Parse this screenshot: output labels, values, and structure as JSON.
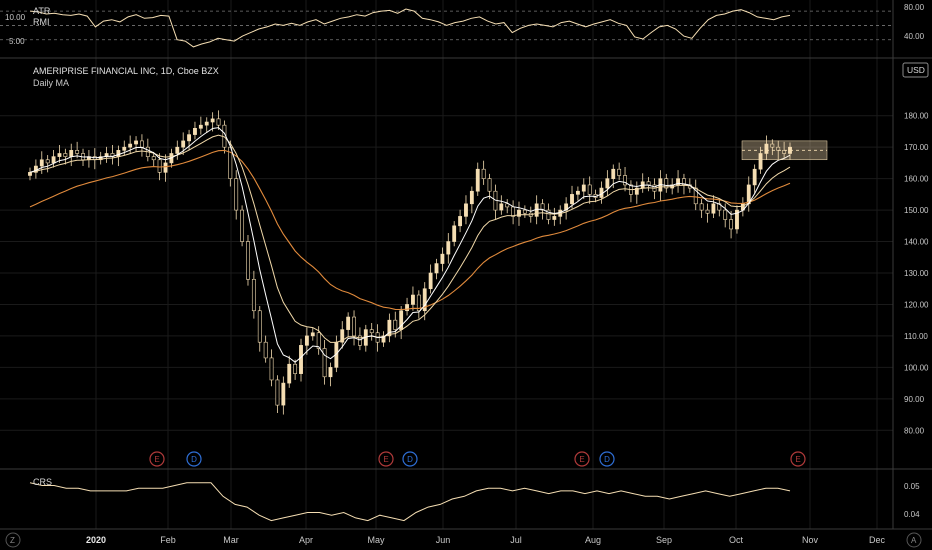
{
  "main_legend": {
    "title": "AMERIPRISE FINANCIAL INC, 1D, Cboe BZX",
    "subtitle": "Daily MA"
  },
  "top_legend": {
    "atr": "ATR",
    "rmi": "RMI"
  },
  "bottom_legend": {
    "crs": "CRS"
  },
  "currency_badge": "USD",
  "corner_buttons": {
    "left_bottom": "Z",
    "right_bottom": "A"
  },
  "colors": {
    "candle": "#f5deb3",
    "ma_fast": "#ffffff",
    "ma_mid": "#f0d8a8",
    "ma_slow": "#e08a3c",
    "indicator": "#f5deb3",
    "highlight": "#f5deb3",
    "earnings": "#b03a3a",
    "dividend": "#2f6fd6",
    "grid": "#1a1a1a"
  },
  "chart_data": [
    {
      "type": "line",
      "panel": "top",
      "series": [
        {
          "name": "RMI",
          "values": [
            80,
            79,
            76,
            77,
            75,
            74,
            76,
            73,
            58,
            66,
            68,
            65,
            72,
            75,
            70,
            71,
            74,
            73,
            40,
            38,
            30,
            34,
            37,
            42,
            40,
            38,
            45,
            50,
            55,
            58,
            62,
            60,
            63,
            60,
            65,
            68,
            62,
            66,
            70,
            72,
            75,
            73,
            78,
            80,
            81,
            77,
            83,
            80,
            70,
            68,
            65,
            60,
            64,
            66,
            70,
            72,
            66,
            62,
            64,
            50,
            56,
            60,
            62,
            60,
            58,
            64,
            66,
            62,
            58,
            62,
            65,
            68,
            63,
            60,
            44,
            41,
            50,
            58,
            60,
            55,
            45,
            42,
            56,
            68,
            74,
            76,
            80,
            82,
            78,
            72,
            70,
            68,
            72,
            74
          ]
        }
      ],
      "yticks": [
        "10.00",
        "5.00"
      ],
      "right_ticks": [
        "80.00",
        "40.00"
      ],
      "reference_lines": [
        80,
        60,
        40
      ],
      "ylim": [
        20,
        90
      ]
    },
    {
      "type": "bar",
      "panel": "main",
      "x_labels": [
        "2020",
        "Feb",
        "Mar",
        "Apr",
        "May",
        "Jun",
        "Jul",
        "Aug",
        "Sep",
        "Oct",
        "Nov",
        "Dec"
      ],
      "yticks": [
        "180.00",
        "170.00",
        "160.00",
        "150.00",
        "140.00",
        "130.00",
        "120.00",
        "110.00",
        "100.00",
        "90.00",
        "80.00"
      ],
      "ylim": [
        75,
        185
      ],
      "close": [
        162,
        164,
        166,
        165,
        167,
        168,
        167,
        169,
        168,
        166,
        167,
        166,
        167,
        168,
        167,
        169,
        170,
        171,
        172,
        170,
        167,
        166,
        162,
        165,
        168,
        170,
        172,
        174,
        176,
        177,
        178,
        179,
        177,
        170,
        160,
        150,
        140,
        128,
        118,
        108,
        103,
        96,
        88,
        95,
        101,
        98,
        107,
        110,
        111,
        106,
        97,
        100,
        108,
        112,
        116,
        110,
        107,
        112,
        111,
        108,
        110,
        115,
        112,
        118,
        120,
        123,
        118,
        125,
        130,
        133,
        136,
        140,
        145,
        148,
        152,
        156,
        163,
        160,
        156,
        150,
        152,
        151,
        148,
        150,
        149,
        148,
        152,
        150,
        147,
        148,
        150,
        152,
        155,
        156,
        158,
        155,
        154,
        157,
        160,
        163,
        161,
        158,
        155,
        157,
        159,
        158,
        156,
        160,
        157,
        158,
        160,
        158,
        157,
        152,
        150,
        149,
        152,
        150,
        147,
        144,
        150,
        152,
        158,
        163,
        168,
        171,
        170,
        169,
        168,
        170
      ],
      "annotations": [
        {
          "label": "E",
          "kind": "earnings"
        },
        {
          "label": "D",
          "kind": "dividend"
        },
        {
          "label": "E",
          "kind": "earnings"
        },
        {
          "label": "D",
          "kind": "dividend"
        },
        {
          "label": "E",
          "kind": "earnings"
        },
        {
          "label": "D",
          "kind": "dividend"
        },
        {
          "label": "E",
          "kind": "earnings"
        }
      ],
      "highlight_range": [
        166,
        172
      ]
    },
    {
      "type": "line",
      "panel": "bottom",
      "series": [
        {
          "name": "CRS",
          "values": [
            0.052,
            0.051,
            0.051,
            0.05,
            0.05,
            0.049,
            0.049,
            0.049,
            0.049,
            0.05,
            0.05,
            0.05,
            0.051,
            0.052,
            0.052,
            0.052,
            0.047,
            0.044,
            0.043,
            0.04,
            0.038,
            0.039,
            0.04,
            0.041,
            0.041,
            0.04,
            0.041,
            0.039,
            0.038,
            0.04,
            0.039,
            0.038,
            0.041,
            0.043,
            0.044,
            0.046,
            0.047,
            0.049,
            0.05,
            0.05,
            0.049,
            0.05,
            0.049,
            0.048,
            0.049,
            0.049,
            0.048,
            0.049,
            0.048,
            0.049,
            0.048,
            0.047,
            0.047,
            0.046,
            0.047,
            0.048,
            0.049,
            0.048,
            0.047,
            0.048,
            0.049,
            0.05,
            0.05,
            0.049
          ]
        }
      ],
      "right_ticks": [
        "0.05",
        "0.04"
      ],
      "ylim": [
        0.036,
        0.056
      ]
    }
  ]
}
